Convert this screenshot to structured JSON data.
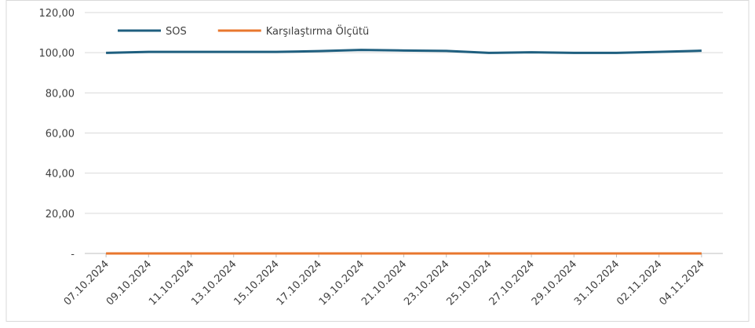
{
  "chart_data": {
    "type": "line",
    "categories": [
      "07.10.2024",
      "09.10.2024",
      "11.10.2024",
      "13.10.2024",
      "15.10.2024",
      "17.10.2024",
      "19.10.2024",
      "21.10.2024",
      "23.10.2024",
      "25.10.2024",
      "27.10.2024",
      "29.10.2024",
      "31.10.2024",
      "02.11.2024",
      "04.11.2024"
    ],
    "series": [
      {
        "name": "SOS",
        "color": "#1f5f7f",
        "values": [
          99.9,
          100.4,
          100.4,
          100.4,
          100.4,
          100.8,
          101.4,
          101.1,
          100.9,
          99.9,
          100.2,
          99.9,
          99.9,
          100.4,
          101.0
        ]
      },
      {
        "name": "Karşılaştırma Ölçütü",
        "color": "#e8772e",
        "values": [
          0,
          0,
          0,
          0,
          0,
          0,
          0,
          0,
          0,
          0,
          0,
          0,
          0,
          0,
          0
        ]
      }
    ],
    "ylim": [
      0,
      120
    ],
    "yticks": [
      {
        "value": 0,
        "label": "-"
      },
      {
        "value": 20,
        "label": "20,00"
      },
      {
        "value": 40,
        "label": "40,00"
      },
      {
        "value": 60,
        "label": "60,00"
      },
      {
        "value": 80,
        "label": "80,00"
      },
      {
        "value": 100,
        "label": "100,00"
      },
      {
        "value": 120,
        "label": "120,00"
      }
    ],
    "grid": true,
    "legend": "top-left"
  }
}
